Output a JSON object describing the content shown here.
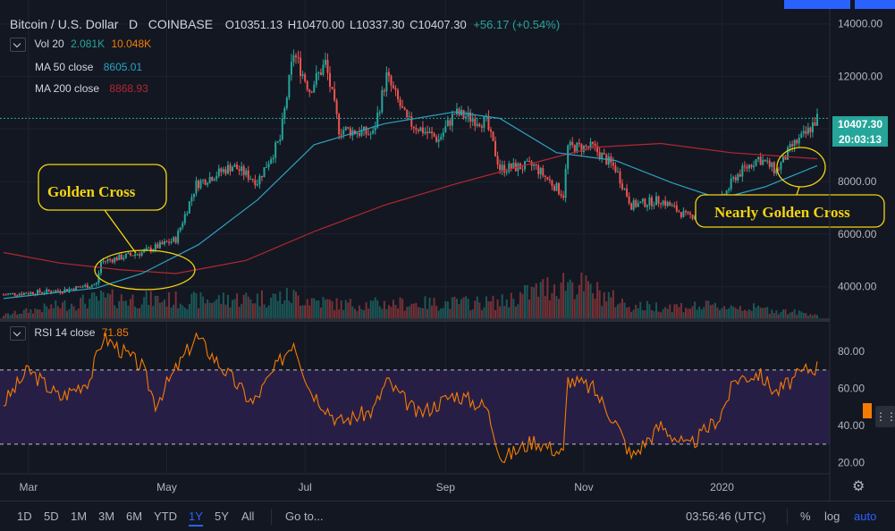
{
  "header": {
    "symbol": "Bitcoin / U.S. Dollar",
    "interval": "D",
    "exchange": "COINBASE",
    "o_label": "O",
    "o": "10351.13",
    "h_label": "H",
    "h": "10470.00",
    "l_label": "L",
    "l": "10337.30",
    "c_label": "C",
    "c": "10407.30",
    "change": "+56.17 (+0.54%)"
  },
  "legend": {
    "vol_name": "Vol 20",
    "vol_a": "2.081K",
    "vol_b": "10.048K",
    "ma50_name": "MA 50 close",
    "ma50_value": "8605.01",
    "ma200_name": "MA 200 close",
    "ma200_value": "8868.93",
    "rsi_name": "RSI 14 close",
    "rsi_value": "71.85"
  },
  "price_badge": {
    "value": "10407.30",
    "countdown": "20:03:13"
  },
  "annotations": {
    "golden_cross": "Golden Cross",
    "nearly_golden_cross": "Nearly Golden Cross"
  },
  "bottom_bar": {
    "timeframes": [
      "1D",
      "5D",
      "1M",
      "3M",
      "6M",
      "YTD",
      "1Y",
      "5Y",
      "All"
    ],
    "active_timeframe": "1Y",
    "goto": "Go to...",
    "clock": "03:56:46 (UTC)",
    "percent": "%",
    "log": "log",
    "auto": "auto"
  },
  "colors": {
    "background": "#131722",
    "up": "#26a69a",
    "down": "#ef5350",
    "ma50": "#2ba3c2",
    "ma200": "#b22833",
    "rsi": "#f57c00",
    "annotation": "#f5d40f",
    "accent": "#2962ff"
  },
  "chart_data": {
    "type": "line",
    "price_axis": {
      "min": 2800,
      "max": 14500,
      "ticks": [
        4000,
        6000,
        8000,
        10000,
        12000,
        14000
      ],
      "tick_labels": [
        "4000.00",
        "6000.00",
        "8000.00",
        "10000.00",
        "12000.00",
        "14000.00"
      ]
    },
    "rsi_axis": {
      "min": 15,
      "max": 95,
      "ticks": [
        20,
        40,
        60,
        80
      ],
      "tick_labels": [
        "20.00",
        "40.00",
        "60.00",
        "80.00"
      ],
      "band": [
        30,
        70
      ]
    },
    "x_axis": {
      "start": "2019-02-18",
      "end": "2020-02-12",
      "labels": [
        {
          "label": "Mar",
          "date": "2019-03-01"
        },
        {
          "label": "May",
          "date": "2019-05-01"
        },
        {
          "label": "Jul",
          "date": "2019-07-01"
        },
        {
          "label": "Sep",
          "date": "2019-09-01"
        },
        {
          "label": "Nov",
          "date": "2019-11-01"
        },
        {
          "label": "2020",
          "date": "2020-01-01"
        }
      ]
    },
    "price_close": [
      {
        "date": "2019-02-18",
        "value": 3700
      },
      {
        "date": "2019-03-15",
        "value": 3850
      },
      {
        "date": "2019-03-31",
        "value": 4100
      },
      {
        "date": "2019-04-02",
        "value": 4950
      },
      {
        "date": "2019-04-20",
        "value": 5300
      },
      {
        "date": "2019-05-05",
        "value": 5800
      },
      {
        "date": "2019-05-14",
        "value": 7900
      },
      {
        "date": "2019-05-30",
        "value": 8600
      },
      {
        "date": "2019-06-10",
        "value": 8000
      },
      {
        "date": "2019-06-20",
        "value": 9600
      },
      {
        "date": "2019-06-26",
        "value": 12900
      },
      {
        "date": "2019-07-03",
        "value": 11500
      },
      {
        "date": "2019-07-10",
        "value": 12500
      },
      {
        "date": "2019-07-16",
        "value": 10000
      },
      {
        "date": "2019-07-31",
        "value": 9800
      },
      {
        "date": "2019-08-06",
        "value": 12000
      },
      {
        "date": "2019-08-15",
        "value": 10300
      },
      {
        "date": "2019-08-29",
        "value": 9600
      },
      {
        "date": "2019-09-05",
        "value": 10600
      },
      {
        "date": "2019-09-19",
        "value": 10250
      },
      {
        "date": "2019-09-25",
        "value": 8500
      },
      {
        "date": "2019-10-10",
        "value": 8600
      },
      {
        "date": "2019-10-23",
        "value": 7500
      },
      {
        "date": "2019-10-25",
        "value": 9300
      },
      {
        "date": "2019-11-05",
        "value": 9300
      },
      {
        "date": "2019-11-15",
        "value": 8500
      },
      {
        "date": "2019-11-22",
        "value": 7100
      },
      {
        "date": "2019-12-05",
        "value": 7300
      },
      {
        "date": "2019-12-17",
        "value": 6650
      },
      {
        "date": "2019-12-31",
        "value": 7200
      },
      {
        "date": "2020-01-07",
        "value": 8200
      },
      {
        "date": "2020-01-17",
        "value": 8900
      },
      {
        "date": "2020-01-25",
        "value": 8400
      },
      {
        "date": "2020-02-01",
        "value": 9350
      },
      {
        "date": "2020-02-07",
        "value": 9800
      },
      {
        "date": "2020-02-12",
        "value": 10407
      }
    ],
    "series": [
      {
        "name": "MA 50 close",
        "points": [
          {
            "date": "2019-02-18",
            "value": 3550
          },
          {
            "date": "2019-03-31",
            "value": 3950
          },
          {
            "date": "2019-04-20",
            "value": 4500
          },
          {
            "date": "2019-05-15",
            "value": 5600
          },
          {
            "date": "2019-06-10",
            "value": 7300
          },
          {
            "date": "2019-07-05",
            "value": 9400
          },
          {
            "date": "2019-08-05",
            "value": 10200
          },
          {
            "date": "2019-09-05",
            "value": 10650
          },
          {
            "date": "2019-09-25",
            "value": 10400
          },
          {
            "date": "2019-10-20",
            "value": 9100
          },
          {
            "date": "2019-11-15",
            "value": 8800
          },
          {
            "date": "2019-12-10",
            "value": 7950
          },
          {
            "date": "2019-12-31",
            "value": 7350
          },
          {
            "date": "2020-01-20",
            "value": 7800
          },
          {
            "date": "2020-02-12",
            "value": 8605
          }
        ]
      },
      {
        "name": "MA 200 close",
        "points": [
          {
            "date": "2019-02-18",
            "value": 5300
          },
          {
            "date": "2019-03-15",
            "value": 4900
          },
          {
            "date": "2019-04-10",
            "value": 4650
          },
          {
            "date": "2019-05-05",
            "value": 4500
          },
          {
            "date": "2019-06-05",
            "value": 5000
          },
          {
            "date": "2019-07-05",
            "value": 6100
          },
          {
            "date": "2019-08-05",
            "value": 7100
          },
          {
            "date": "2019-09-05",
            "value": 7900
          },
          {
            "date": "2019-10-05",
            "value": 8600
          },
          {
            "date": "2019-11-05",
            "value": 9300
          },
          {
            "date": "2019-12-05",
            "value": 9450
          },
          {
            "date": "2020-01-05",
            "value": 9100
          },
          {
            "date": "2020-02-12",
            "value": 8869
          }
        ]
      },
      {
        "name": "RSI 14 close",
        "points": [
          {
            "date": "2019-02-18",
            "value": 52
          },
          {
            "date": "2019-03-01",
            "value": 70
          },
          {
            "date": "2019-03-15",
            "value": 55
          },
          {
            "date": "2019-03-28",
            "value": 65
          },
          {
            "date": "2019-04-03",
            "value": 88
          },
          {
            "date": "2019-04-20",
            "value": 72
          },
          {
            "date": "2019-04-26",
            "value": 52
          },
          {
            "date": "2019-05-14",
            "value": 88
          },
          {
            "date": "2019-05-25",
            "value": 72
          },
          {
            "date": "2019-06-08",
            "value": 52
          },
          {
            "date": "2019-06-26",
            "value": 86
          },
          {
            "date": "2019-07-03",
            "value": 60
          },
          {
            "date": "2019-07-16",
            "value": 42
          },
          {
            "date": "2019-07-31",
            "value": 48
          },
          {
            "date": "2019-08-06",
            "value": 64
          },
          {
            "date": "2019-08-20",
            "value": 46
          },
          {
            "date": "2019-09-05",
            "value": 57
          },
          {
            "date": "2019-09-19",
            "value": 50
          },
          {
            "date": "2019-09-26",
            "value": 22
          },
          {
            "date": "2019-10-10",
            "value": 32
          },
          {
            "date": "2019-10-23",
            "value": 25
          },
          {
            "date": "2019-10-25",
            "value": 65
          },
          {
            "date": "2019-11-05",
            "value": 60
          },
          {
            "date": "2019-11-15",
            "value": 42
          },
          {
            "date": "2019-11-22",
            "value": 23
          },
          {
            "date": "2019-12-05",
            "value": 40
          },
          {
            "date": "2019-12-17",
            "value": 28
          },
          {
            "date": "2019-12-31",
            "value": 45
          },
          {
            "date": "2020-01-07",
            "value": 65
          },
          {
            "date": "2020-01-17",
            "value": 68
          },
          {
            "date": "2020-01-25",
            "value": 58
          },
          {
            "date": "2020-02-07",
            "value": 70
          },
          {
            "date": "2020-02-12",
            "value": 71.85
          }
        ]
      }
    ],
    "volume_relative": [
      {
        "date": "2019-02-18",
        "value": 0.08
      },
      {
        "date": "2019-04-02",
        "value": 0.5
      },
      {
        "date": "2019-05-14",
        "value": 0.45
      },
      {
        "date": "2019-06-26",
        "value": 0.55
      },
      {
        "date": "2019-07-16",
        "value": 0.35
      },
      {
        "date": "2019-09-25",
        "value": 0.4
      },
      {
        "date": "2019-10-25",
        "value": 0.95
      },
      {
        "date": "2019-11-22",
        "value": 0.3
      },
      {
        "date": "2020-01-07",
        "value": 0.3
      },
      {
        "date": "2020-02-12",
        "value": 0.1
      }
    ]
  }
}
